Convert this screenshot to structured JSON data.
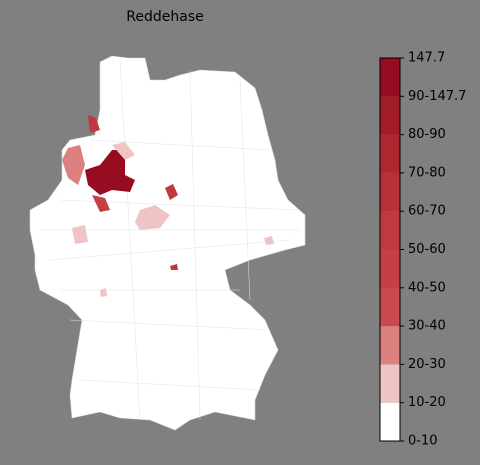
{
  "title": "Reddehase",
  "colorbar": {
    "labels": [
      "147.7",
      "90-147.7",
      "80-90",
      "70-80",
      "60-70",
      "50-60",
      "40-50",
      "30-40",
      "20-30",
      "10-20",
      "0-10"
    ],
    "colors": [
      "#ffffff",
      "#f0c4c4",
      "#dc8080",
      "#c84a4e",
      "#c44044",
      "#c0393e",
      "#b83038",
      "#ae2730",
      "#a21b28",
      "#960c20"
    ]
  }
}
